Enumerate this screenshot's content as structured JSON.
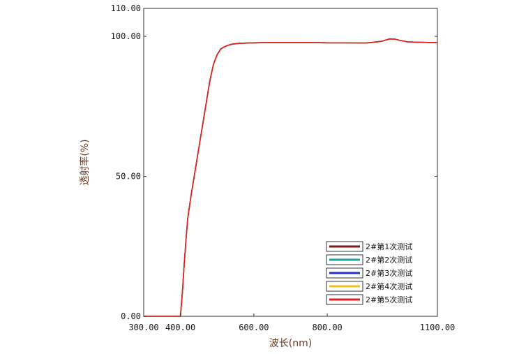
{
  "chart_data": {
    "type": "line",
    "title": "",
    "xlabel": "波长(nm)",
    "ylabel": "透射率(%)",
    "xlim": [
      300,
      1100
    ],
    "ylim": [
      0,
      110
    ],
    "x_ticks": [
      300,
      400,
      600,
      800,
      1100
    ],
    "x_tick_labels": [
      "300.00",
      "400.00",
      "600.00",
      "800.00",
      "1100.00"
    ],
    "y_ticks": [
      0,
      50,
      100,
      110
    ],
    "y_tick_labels": [
      "0.00",
      "50.00",
      "100.00",
      "110.00"
    ],
    "grid": false,
    "legend_position": "bottom-right",
    "x": [
      300,
      380,
      400,
      405,
      410,
      415,
      420,
      430,
      440,
      450,
      460,
      470,
      480,
      490,
      500,
      510,
      520,
      530,
      540,
      560,
      580,
      600,
      650,
      700,
      750,
      800,
      850,
      900,
      920,
      950,
      970,
      985,
      1000,
      1020,
      1050,
      1080,
      1100
    ],
    "series": [
      {
        "name": "2#第1次测试",
        "color": "#7a1c1c",
        "values": [
          0,
          0,
          0,
          8,
          18,
          27,
          35,
          44,
          52,
          60,
          68,
          76,
          84,
          90,
          93.5,
          95.5,
          96.3,
          96.8,
          97.2,
          97.5,
          97.6,
          97.7,
          97.8,
          97.8,
          97.8,
          97.7,
          97.7,
          97.6,
          97.8,
          98.3,
          99.1,
          99.0,
          98.5,
          98.0,
          97.9,
          97.8,
          97.8
        ]
      },
      {
        "name": "2#第2次测试",
        "color": "#1aa596",
        "values": [
          0,
          0,
          0,
          8,
          18,
          27,
          35,
          44,
          52,
          60,
          68,
          76,
          84,
          90,
          93.5,
          95.5,
          96.3,
          96.8,
          97.2,
          97.5,
          97.6,
          97.7,
          97.8,
          97.8,
          97.8,
          97.7,
          97.7,
          97.6,
          97.8,
          98.3,
          99.1,
          99.0,
          98.5,
          98.0,
          97.9,
          97.8,
          97.8
        ]
      },
      {
        "name": "2#第3次测试",
        "color": "#2234c8",
        "values": [
          0,
          0,
          0,
          8,
          18,
          27,
          35,
          44,
          52,
          60,
          68,
          76,
          84,
          90,
          93.5,
          95.5,
          96.3,
          96.8,
          97.2,
          97.5,
          97.6,
          97.7,
          97.8,
          97.8,
          97.8,
          97.7,
          97.7,
          97.6,
          97.8,
          98.3,
          99.1,
          99.0,
          98.5,
          98.0,
          97.9,
          97.8,
          97.8
        ]
      },
      {
        "name": "2#第4次测试",
        "color": "#f0c020",
        "values": [
          0,
          0,
          0,
          8,
          18,
          27,
          35,
          44,
          52,
          60,
          68,
          76,
          84,
          90,
          93.5,
          95.5,
          96.3,
          96.8,
          97.2,
          97.5,
          97.6,
          97.7,
          97.8,
          97.8,
          97.8,
          97.7,
          97.7,
          97.6,
          97.8,
          98.3,
          99.1,
          99.0,
          98.5,
          98.0,
          97.9,
          97.8,
          97.8
        ]
      },
      {
        "name": "2#第5次测试",
        "color": "#e02020",
        "values": [
          0,
          0,
          0,
          8,
          18,
          27,
          35,
          44,
          52,
          60,
          68,
          76,
          84,
          90,
          93.5,
          95.5,
          96.3,
          96.8,
          97.2,
          97.5,
          97.6,
          97.7,
          97.8,
          97.8,
          97.8,
          97.7,
          97.7,
          97.6,
          97.8,
          98.3,
          99.1,
          99.0,
          98.5,
          98.0,
          97.9,
          97.8,
          97.8
        ]
      }
    ]
  }
}
